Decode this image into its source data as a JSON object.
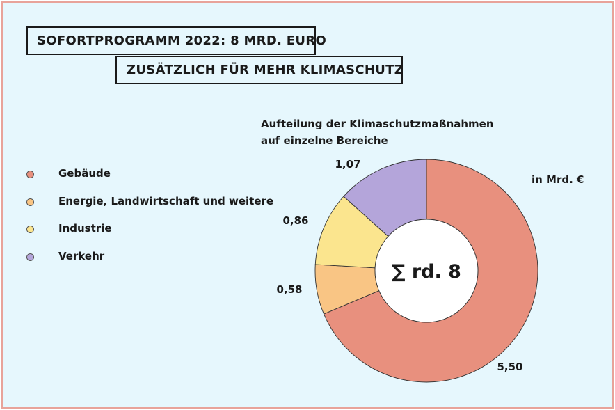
{
  "header": {
    "line1": "SOFORTPROGRAMM 2022: 8 MRD. EURO",
    "line2": "ZUSÄTZLICH FÜR MEHR KLIMASCHUTZ"
  },
  "chart_data": {
    "type": "pie",
    "title": "Aufteilung der Klimaschutzmaßnahmen",
    "subtitle": "auf einzelne Bereiche",
    "unit": "in Mrd. €",
    "center_label": "∑ rd. 8",
    "legend_position": "left",
    "slices": [
      {
        "name": "Gebäude",
        "value": 5.5,
        "label": "5,50",
        "color": "#e8907e"
      },
      {
        "name": "Energie, Landwirtschaft und weitere",
        "value": 0.58,
        "label": "0,58",
        "color": "#f9c584"
      },
      {
        "name": "Industrie",
        "value": 0.86,
        "label": "0,86",
        "color": "#fbe58e"
      },
      {
        "name": "Verkehr",
        "value": 1.07,
        "label": "1,07",
        "color": "#b4a5da"
      }
    ]
  }
}
